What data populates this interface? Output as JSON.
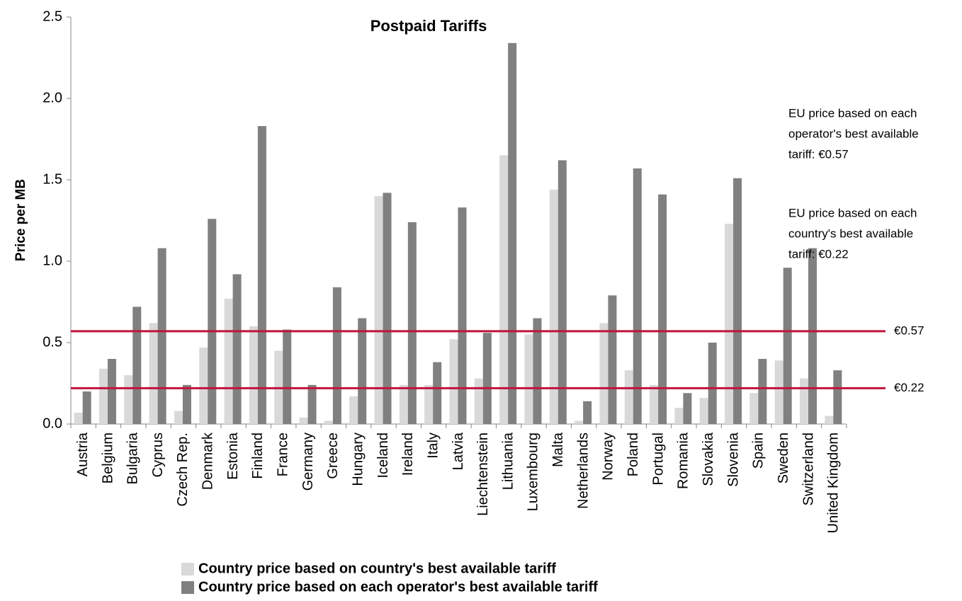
{
  "chart_data": {
    "type": "bar",
    "title": "Postpaid Tariffs",
    "y_label": "Price per MB",
    "categories": [
      "Austria",
      "Belgium",
      "Bulgaria",
      "Cyprus",
      "Czech Rep.",
      "Denmark",
      "Estonia",
      "Finland",
      "France",
      "Germany",
      "Greece",
      "Hungary",
      "Iceland",
      "Ireland",
      "Italy",
      "Latvia",
      "Liechtenstein",
      "Lithuania",
      "Luxembourg",
      "Malta",
      "Netherlands",
      "Norway",
      "Poland",
      "Portugal",
      "Romania",
      "Slovakia",
      "Slovenia",
      "Spain",
      "Sweden",
      "Switzerland",
      "United Kingdom"
    ],
    "series": [
      {
        "name": "Country price based on country's best available tariff",
        "color": "#d9d9d9",
        "values": [
          0.07,
          0.34,
          0.3,
          0.62,
          0.08,
          0.47,
          0.77,
          0.6,
          0.45,
          0.04,
          0.02,
          0.17,
          1.4,
          0.24,
          0.24,
          0.52,
          0.28,
          1.65,
          0.55,
          1.44,
          0.02,
          0.62,
          0.33,
          0.24,
          0.1,
          0.16,
          1.23,
          0.19,
          0.39,
          0.28,
          0.05
        ]
      },
      {
        "name": "Country price based on each operator's best available tariff",
        "color": "#808080",
        "values": [
          0.2,
          0.4,
          0.72,
          1.08,
          0.24,
          1.26,
          0.92,
          1.83,
          0.58,
          0.24,
          0.84,
          0.65,
          1.42,
          1.24,
          0.38,
          1.33,
          0.56,
          2.34,
          0.65,
          1.62,
          0.14,
          0.79,
          1.57,
          1.41,
          0.19,
          0.5,
          1.51,
          0.4,
          0.96,
          1.08,
          0.33
        ]
      }
    ],
    "ylim": [
      0,
      2.5
    ],
    "yticks": [
      {
        "value": 0,
        "label": "0.0"
      },
      0.5,
      {
        "value": 1,
        "label": "1.0"
      },
      1.5,
      {
        "value": 2,
        "label": "2.0"
      },
      2.5
    ],
    "reference_lines": [
      {
        "value": 0.57,
        "label": "€0.57",
        "color": "#c0143c"
      },
      {
        "value": 0.22,
        "label": "€0.22",
        "color": "#c0143c"
      }
    ],
    "annotations": [
      [
        "EU price based on each",
        "operator's best available",
        "tariff: €0.57"
      ],
      [
        "EU price based on each",
        "country's best available",
        "tariff: €0.22"
      ]
    ]
  }
}
